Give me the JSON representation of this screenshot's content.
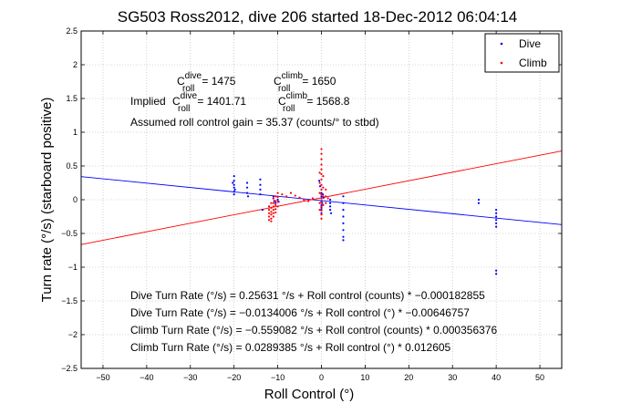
{
  "chart_data": {
    "type": "scatter",
    "title": "SG503 Ross2012, dive 206 started 18-Dec-2012 06:04:14",
    "xlabel": "Roll Control (°)",
    "ylabel": "Turn rate (°/s) (starboard positive)",
    "xlim": [
      -55,
      55
    ],
    "ylim": [
      -2.5,
      2.5
    ],
    "xticks": [
      -50,
      -40,
      -30,
      -20,
      -10,
      0,
      10,
      20,
      30,
      40,
      50
    ],
    "yticks": [
      -2.5,
      -2,
      -1.5,
      -1,
      -0.5,
      0,
      0.5,
      1,
      1.5,
      2,
      2.5
    ],
    "grid": true,
    "legend_position": "top-right",
    "legend": [
      {
        "label": "Dive",
        "color": "#0000ff"
      },
      {
        "label": "Climb",
        "color": "#ff0000"
      }
    ],
    "series": [
      {
        "name": "Dive",
        "color": "#0000ff",
        "points": [
          [
            -20,
            0.35
          ],
          [
            -20,
            0.28
          ],
          [
            -20,
            0.22
          ],
          [
            -20,
            0.18
          ],
          [
            -20,
            0.12
          ],
          [
            -20,
            0.08
          ],
          [
            -20.3,
            0.25
          ],
          [
            -19.8,
            0.15
          ],
          [
            -17,
            0.25
          ],
          [
            -17,
            0.18
          ],
          [
            -17,
            0.1
          ],
          [
            -16.8,
            0.05
          ],
          [
            -14,
            0.3
          ],
          [
            -14,
            0.22
          ],
          [
            -14,
            0.15
          ],
          [
            -14,
            0.08
          ],
          [
            -13.5,
            -0.15
          ],
          [
            -11,
            0.05
          ],
          [
            -11,
            0.02
          ],
          [
            -10.8,
            -0.02
          ],
          [
            -10.5,
            -0.05
          ],
          [
            -10,
            0.0
          ],
          [
            -9.8,
            -0.03
          ],
          [
            -0.5,
            0.28
          ],
          [
            -0.3,
            0.2
          ],
          [
            0,
            0.15
          ],
          [
            0,
            0.1
          ],
          [
            0,
            0.05
          ],
          [
            0,
            0.02
          ],
          [
            0,
            -0.02
          ],
          [
            0.2,
            -0.05
          ],
          [
            0,
            -0.08
          ],
          [
            0,
            -0.12
          ],
          [
            0.3,
            0.08
          ],
          [
            0.5,
            0.03
          ],
          [
            0,
            -0.15
          ],
          [
            0,
            -0.2
          ],
          [
            2,
            0.0
          ],
          [
            2,
            -0.05
          ],
          [
            2,
            -0.1
          ],
          [
            2,
            -0.15
          ],
          [
            2.2,
            -0.2
          ],
          [
            5,
            0.05
          ],
          [
            5,
            -0.05
          ],
          [
            5,
            -0.15
          ],
          [
            5,
            -0.25
          ],
          [
            5,
            -0.35
          ],
          [
            5,
            -0.45
          ],
          [
            5,
            -0.55
          ],
          [
            5,
            -0.6
          ],
          [
            36,
            0.0
          ],
          [
            36,
            -0.05
          ],
          [
            40,
            -0.15
          ],
          [
            40,
            -0.2
          ],
          [
            40,
            -0.25
          ],
          [
            40,
            -0.3
          ],
          [
            40,
            -0.35
          ],
          [
            40,
            -0.4
          ],
          [
            40,
            -1.05
          ],
          [
            40,
            -1.1
          ]
        ]
      },
      {
        "name": "Climb",
        "color": "#ff0000",
        "points": [
          [
            -12,
            -0.1
          ],
          [
            -12,
            -0.15
          ],
          [
            -12,
            -0.2
          ],
          [
            -12,
            -0.25
          ],
          [
            -12,
            -0.3
          ],
          [
            -11.5,
            -0.05
          ],
          [
            -11.5,
            -0.12
          ],
          [
            -11.5,
            -0.18
          ],
          [
            -11.5,
            -0.22
          ],
          [
            -11.5,
            -0.28
          ],
          [
            -11.5,
            -0.32
          ],
          [
            -11,
            0.02
          ],
          [
            -11,
            -0.05
          ],
          [
            -11,
            -0.1
          ],
          [
            -11,
            -0.15
          ],
          [
            -11,
            -0.2
          ],
          [
            -11,
            -0.25
          ],
          [
            -10.5,
            0.05
          ],
          [
            -10.5,
            -0.02
          ],
          [
            -10.5,
            -0.08
          ],
          [
            -10.5,
            -0.14
          ],
          [
            -10.5,
            -0.19
          ],
          [
            -10,
            0.1
          ],
          [
            -10,
            0.04
          ],
          [
            -10,
            -0.03
          ],
          [
            -10,
            -0.1
          ],
          [
            -9,
            0.08
          ],
          [
            -8,
            0.05
          ],
          [
            -7,
            0.1
          ],
          [
            -6,
            0.06
          ],
          [
            -5,
            0.03
          ],
          [
            -4,
            0.0
          ],
          [
            -3,
            -0.02
          ],
          [
            -2,
            0.02
          ],
          [
            0,
            0.75
          ],
          [
            0,
            0.68
          ],
          [
            0,
            0.6
          ],
          [
            0,
            0.52
          ],
          [
            0,
            0.45
          ],
          [
            0,
            0.38
          ],
          [
            0,
            0.3
          ],
          [
            0,
            0.22
          ],
          [
            0,
            0.15
          ],
          [
            0,
            0.08
          ],
          [
            0,
            0.02
          ],
          [
            0,
            -0.04
          ],
          [
            0,
            -0.1
          ],
          [
            0,
            -0.16
          ],
          [
            0,
            -0.22
          ],
          [
            0,
            -0.28
          ],
          [
            -0.4,
            0.4
          ],
          [
            -0.4,
            0.25
          ],
          [
            -0.4,
            0.1
          ],
          [
            -0.4,
            -0.05
          ],
          [
            -0.4,
            -0.15
          ],
          [
            0.4,
            0.35
          ],
          [
            0.4,
            0.18
          ],
          [
            0.4,
            0.05
          ],
          [
            0.4,
            -0.08
          ],
          [
            1,
            0.15
          ],
          [
            1,
            0.05
          ],
          [
            1,
            -0.05
          ],
          [
            1.5,
            0.02
          ]
        ]
      }
    ],
    "fit_lines": [
      {
        "name": "Dive",
        "color": "#0000ff",
        "intercept": -0.0134006,
        "slope": -0.00646757
      },
      {
        "name": "Climb",
        "color": "#ff0000",
        "intercept": 0.0289385,
        "slope": 0.012605
      }
    ],
    "annotations": {
      "c_roll_dive": {
        "prefix": "C",
        "sup": "dive",
        "sub": "roll",
        "value": "= 1475"
      },
      "c_roll_climb": {
        "prefix": "C",
        "sup": "climb",
        "sub": "roll",
        "value": "= 1650"
      },
      "implied_label": "Implied",
      "implied_c_roll_dive": {
        "prefix": "C",
        "sup": "dive",
        "sub": "roll",
        "value": "= 1401.71"
      },
      "implied_c_roll_climb": {
        "prefix": "C",
        "sup": "climb",
        "sub": "roll",
        "value": "= 1568.8"
      },
      "gain": "Assumed roll control gain = 35.37 (counts/° to stbd)",
      "eq_dive_counts": "Dive Turn Rate (°/s) = 0.25631 °/s + Roll control (counts) * −0.000182855",
      "eq_dive_deg": "Dive Turn Rate (°/s) = −0.0134006 °/s + Roll control (°) * −0.00646757",
      "eq_climb_counts": "Climb Turn Rate (°/s) = −0.559082 °/s + Roll control (counts) * 0.000356376",
      "eq_climb_deg": "Climb Turn Rate (°/s) = 0.0289385 °/s + Roll control (°) * 0.012605"
    }
  }
}
